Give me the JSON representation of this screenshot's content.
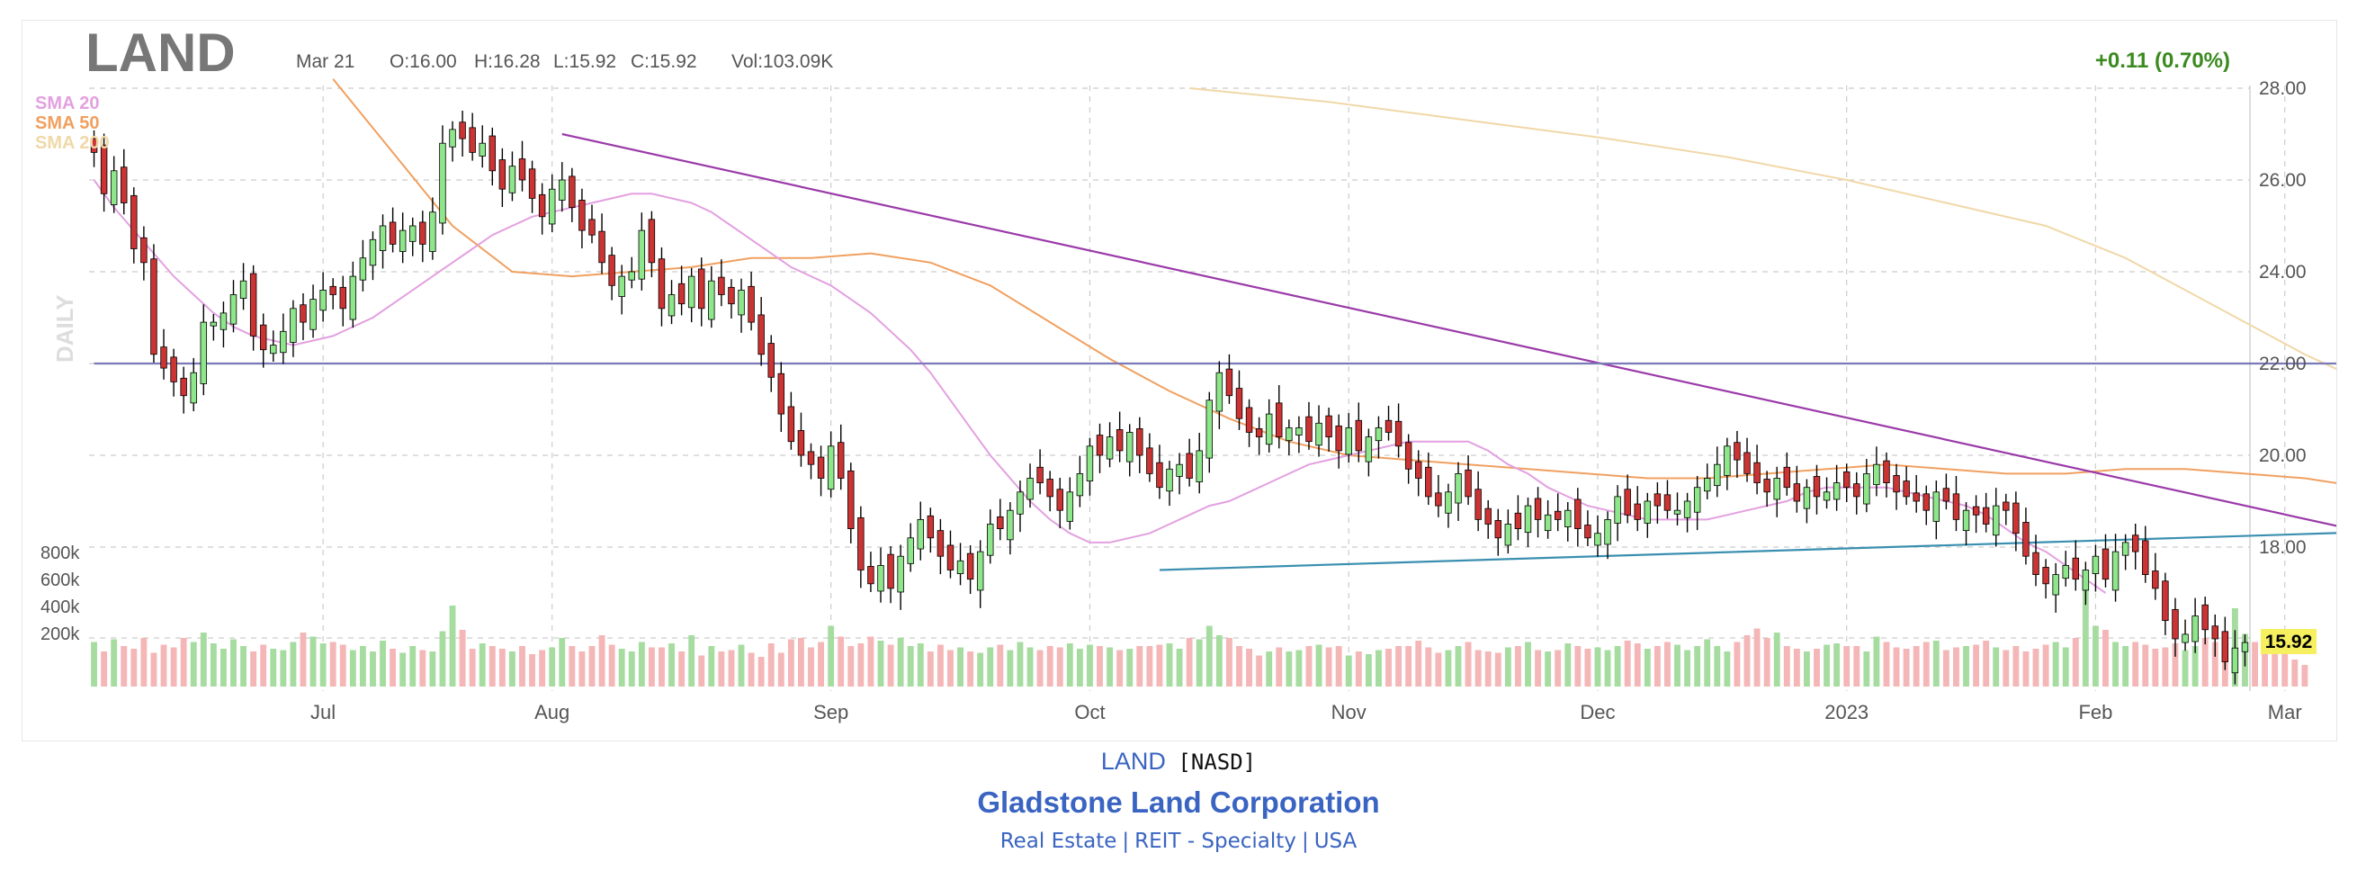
{
  "header": {
    "ticker": "LAND",
    "date": "Mar 21",
    "open": "O:16.00",
    "high": "H:16.28",
    "low": "L:15.92",
    "close": "C:15.92",
    "volume": "Vol:103.09K",
    "change": "+0.11 (0.70%)",
    "change_color": "#3a8a1e",
    "period_label": "DAILY"
  },
  "legend": [
    {
      "label": "SMA 20",
      "color": "#e3a0e0"
    },
    {
      "label": "SMA 50",
      "color": "#f0a060"
    },
    {
      "label": "SMA 200",
      "color": "#f0d8a8"
    }
  ],
  "last_price_tag": "15.92",
  "footer": {
    "symbol": "LAND",
    "exchange": "[NASD]",
    "company": "Gladstone Land Corporation",
    "sector": [
      "Real Estate",
      "REIT - Specialty",
      "USA"
    ]
  },
  "chart_data": {
    "type": "candlestick",
    "title": "LAND",
    "y_ticks": [
      "28.00",
      "26.00",
      "24.00",
      "22.00",
      "20.00",
      "18.00"
    ],
    "ylim": [
      15.0,
      28.0
    ],
    "x_labels": [
      "Jul",
      "Aug",
      "Sep",
      "Oct",
      "Nov",
      "Dec",
      "2023",
      "Feb",
      "Mar"
    ],
    "x_label_index": [
      23,
      46,
      74,
      100,
      126,
      151,
      176,
      201,
      220
    ],
    "volume_ticks": [
      "800k",
      "600k",
      "400k",
      "200k"
    ],
    "volume_max": 1000000,
    "colors": {
      "up": "#8ee68a",
      "down": "#cc3333",
      "up_vol": "#a6dca0",
      "down_vol": "#f4b6b6",
      "wick": "#000000"
    },
    "closes": [
      26.6,
      25.7,
      26.2,
      25.5,
      24.5,
      24.2,
      22.2,
      21.9,
      21.6,
      21.3,
      21.8,
      22.9,
      22.9,
      23.1,
      23.5,
      23.8,
      22.6,
      22.3,
      22.4,
      22.7,
      23.2,
      22.9,
      23.4,
      23.6,
      23.5,
      23.2,
      23.9,
      24.3,
      24.7,
      25.0,
      24.6,
      24.9,
      25.0,
      24.6,
      25.3,
      26.8,
      27.1,
      26.9,
      26.6,
      26.8,
      26.2,
      25.8,
      26.3,
      26.0,
      25.6,
      25.2,
      25.8,
      26.0,
      25.4,
      24.9,
      24.8,
      24.2,
      23.7,
      23.9,
      24.0,
      24.9,
      24.2,
      23.2,
      23.5,
      23.3,
      23.9,
      23.2,
      23.8,
      23.5,
      23.3,
      23.6,
      22.9,
      22.2,
      21.7,
      20.9,
      20.3,
      20.0,
      19.8,
      19.5,
      20.2,
      19.5,
      18.4,
      17.5,
      17.2,
      17.6,
      17.1,
      17.8,
      18.2,
      18.6,
      18.2,
      17.8,
      17.5,
      17.7,
      17.3,
      17.9,
      18.5,
      18.4,
      18.8,
      19.2,
      19.5,
      19.4,
      19.1,
      18.8,
      19.2,
      19.6,
      20.2,
      20.0,
      20.4,
      20.1,
      20.5,
      20.0,
      19.6,
      19.3,
      19.7,
      19.8,
      19.5,
      20.1,
      21.2,
      21.8,
      21.3,
      20.8,
      20.5,
      20.4,
      20.9,
      20.4,
      20.6,
      20.6,
      20.3,
      20.7,
      20.4,
      20.1,
      20.6,
      20.1,
      20.4,
      20.6,
      20.5,
      20.2,
      19.7,
      19.5,
      19.1,
      18.9,
      19.2,
      19.6,
      19.1,
      18.6,
      18.5,
      18.2,
      18.5,
      18.4,
      18.9,
      18.6,
      18.7,
      18.6,
      18.8,
      18.4,
      18.2,
      18.3,
      18.6,
      19.1,
      18.7,
      18.6,
      19.0,
      18.9,
      18.8,
      18.8,
      19.0,
      19.3,
      19.5,
      19.8,
      20.2,
      19.9,
      19.6,
      19.4,
      19.2,
      19.5,
      19.3,
      19.0,
      19.3,
      19.1,
      19.2,
      19.4,
      19.3,
      19.1,
      19.6,
      19.8,
      19.4,
      19.2,
      19.1,
      19.0,
      18.8,
      19.2,
      19.0,
      18.6,
      18.8,
      18.7,
      18.5,
      18.9,
      18.8,
      18.3,
      17.8,
      17.4,
      17.2,
      17.4,
      17.6,
      17.3,
      17.5,
      17.8,
      17.3,
      17.9,
      18.1,
      17.9,
      17.4,
      17.1,
      16.4,
      16.0,
      16.1,
      16.5,
      16.2,
      16.0,
      15.5,
      15.8,
      15.92
    ],
    "volumes": [
      330,
      260,
      350,
      300,
      280,
      360,
      250,
      310,
      290,
      360,
      330,
      400,
      320,
      280,
      350,
      300,
      260,
      310,
      280,
      270,
      330,
      400,
      370,
      320,
      330,
      310,
      270,
      300,
      260,
      340,
      280,
      250,
      300,
      270,
      260,
      410,
      600,
      420,
      280,
      320,
      300,
      280,
      260,
      300,
      240,
      270,
      290,
      360,
      300,
      260,
      300,
      380,
      310,
      280,
      260,
      330,
      290,
      290,
      320,
      260,
      380,
      230,
      300,
      260,
      270,
      310,
      250,
      220,
      320,
      250,
      350,
      360,
      290,
      330,
      450,
      370,
      300,
      320,
      370,
      340,
      310,
      360,
      300,
      320,
      260,
      310,
      270,
      290,
      260,
      250,
      290,
      310,
      270,
      330,
      290,
      270,
      300,
      290,
      320,
      280,
      310,
      300,
      290,
      270,
      280,
      300,
      300,
      310,
      320,
      280,
      360,
      350,
      450,
      380,
      360,
      300,
      280,
      230,
      260,
      290,
      260,
      270,
      300,
      310,
      290,
      300,
      230,
      260,
      240,
      270,
      280,
      300,
      300,
      340,
      290,
      250,
      270,
      300,
      330,
      270,
      260,
      250,
      290,
      300,
      330,
      270,
      260,
      270,
      320,
      300,
      280,
      290,
      270,
      300,
      340,
      320,
      280,
      300,
      330,
      310,
      270,
      300,
      350,
      300,
      260,
      330,
      380,
      430,
      360,
      400,
      300,
      280,
      260,
      280,
      310,
      320,
      300,
      300,
      260,
      370,
      330,
      290,
      280,
      300,
      330,
      340,
      270,
      290,
      300,
      310,
      340,
      290,
      270,
      300,
      260,
      280,
      310,
      330,
      290,
      360,
      730,
      450,
      420,
      330,
      300,
      330,
      310,
      280,
      290,
      320,
      270,
      300,
      360,
      330,
      290,
      580,
      390,
      330,
      300,
      260,
      380,
      200,
      160
    ],
    "sma20": [
      26.0,
      25.4,
      24.9,
      24.4,
      23.9,
      23.5,
      23.1,
      22.8,
      22.6,
      22.5,
      22.4,
      22.5,
      22.6,
      22.8,
      23.0,
      23.3,
      23.6,
      23.9,
      24.2,
      24.5,
      24.8,
      25.0,
      25.2,
      25.3,
      25.4,
      25.5,
      25.6,
      25.7,
      25.7,
      25.6,
      25.5,
      25.3,
      25.0,
      24.7,
      24.4,
      24.1,
      23.9,
      23.7,
      23.4,
      23.1,
      22.7,
      22.3,
      21.8,
      21.2,
      20.6,
      20.0,
      19.5,
      19.0,
      18.6,
      18.3,
      18.1,
      18.1,
      18.2,
      18.3,
      18.5,
      18.7,
      18.9,
      19.0,
      19.2,
      19.4,
      19.6,
      19.8,
      19.9,
      20.0,
      20.1,
      20.2,
      20.3,
      20.3,
      20.3,
      20.3,
      20.1,
      19.8,
      19.6,
      19.3,
      19.1,
      18.9,
      18.8,
      18.7,
      18.6,
      18.6,
      18.6,
      18.6,
      18.7,
      18.8,
      18.9,
      19.0,
      19.2,
      19.3,
      19.3,
      19.3,
      19.3,
      19.2,
      19.1,
      19.0,
      18.9,
      18.7,
      18.4,
      18.1,
      17.9,
      17.6,
      17.3,
      17.0
    ],
    "sma20_index": [
      0,
      2,
      4,
      6,
      8,
      10,
      12,
      14,
      16,
      18,
      20,
      22,
      24,
      26,
      28,
      30,
      32,
      34,
      36,
      38,
      40,
      42,
      44,
      46,
      48,
      50,
      52,
      54,
      56,
      58,
      60,
      62,
      64,
      66,
      68,
      70,
      72,
      74,
      76,
      78,
      80,
      82,
      84,
      86,
      88,
      90,
      92,
      94,
      96,
      98,
      100,
      102,
      104,
      106,
      108,
      110,
      112,
      114,
      116,
      118,
      120,
      122,
      124,
      126,
      128,
      130,
      132,
      134,
      136,
      138,
      140,
      142,
      144,
      146,
      148,
      150,
      152,
      154,
      156,
      158,
      160,
      162,
      164,
      166,
      168,
      170,
      172,
      174,
      176,
      178,
      180,
      182,
      184,
      186,
      188,
      190,
      192,
      194,
      196,
      198,
      200,
      202
    ],
    "sma50": [
      28.2,
      26.6,
      25.0,
      24.0,
      23.9,
      24.0,
      24.1,
      24.3,
      24.3,
      24.4,
      24.2,
      23.7,
      22.9,
      22.1,
      21.4,
      20.8,
      20.3,
      20.0,
      19.9,
      19.8,
      19.7,
      19.6,
      19.5,
      19.5,
      19.6,
      19.7,
      19.8,
      19.7,
      19.6,
      19.6,
      19.7,
      19.7,
      19.6,
      19.5,
      19.3,
      19.1,
      18.9,
      18.7,
      18.6,
      18.5,
      18.4,
      18.4
    ],
    "sma50_index": [
      24,
      30,
      36,
      42,
      48,
      54,
      60,
      66,
      72,
      78,
      84,
      90,
      96,
      102,
      108,
      114,
      120,
      126,
      132,
      138,
      144,
      150,
      156,
      162,
      168,
      174,
      180,
      186,
      192,
      198,
      204,
      210,
      216,
      222,
      228,
      234,
      236,
      237,
      238,
      239,
      239,
      239
    ],
    "sma200": [
      28.0,
      27.7,
      27.3,
      26.9,
      26.5,
      26.0,
      25.5,
      25.0,
      24.3,
      23.6,
      22.9,
      22.2,
      21.6,
      21.1,
      20.8
    ],
    "sma200_index": [
      110,
      124,
      138,
      152,
      164,
      176,
      186,
      196,
      204,
      210,
      216,
      222,
      228,
      234,
      239
    ],
    "trendlines": [
      {
        "name": "resistance",
        "color": "#9a3aa8",
        "from": [
          47,
          27.0
        ],
        "to": [
          239,
          17.8
        ]
      },
      {
        "name": "support",
        "color": "#3a8fb0",
        "from": [
          107,
          17.5
        ],
        "to": [
          239,
          18.4
        ]
      },
      {
        "name": "horizontal",
        "color": "#7a7ab8",
        "from": [
          0,
          22.0
        ],
        "to": [
          239,
          22.0
        ]
      }
    ]
  }
}
